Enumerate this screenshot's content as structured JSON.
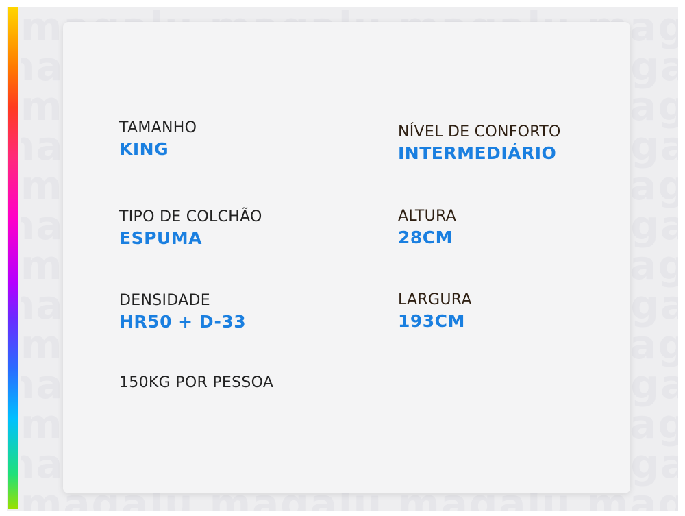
{
  "brand_watermark": "Magalu",
  "colors": {
    "label_dark": "#222222",
    "label_brown": "#2e1f12",
    "value_blue": "#1a7fe0",
    "card_background": "#f4f4f5",
    "rainbow_stripe": [
      "#ffd600",
      "#ff7a00",
      "#ff3b1f",
      "#ff2a7a",
      "#ff00c8",
      "#b400ff",
      "#2a6bff",
      "#00c0ff",
      "#1ee07a",
      "#9be000"
    ]
  },
  "specs": {
    "left": [
      {
        "label": "TAMANHO",
        "value": "KING"
      },
      {
        "label": "TIPO DE COLCHÃO",
        "value": "ESPUMA"
      },
      {
        "label": "DENSIDADE",
        "value": "HR50 + D-33"
      }
    ],
    "right": [
      {
        "label": "NÍVEL DE CONFORTO",
        "value": "INTERMEDIÁRIO"
      },
      {
        "label": "ALTURA",
        "value": "28CM"
      },
      {
        "label": "LARGURA",
        "value": "193CM"
      }
    ],
    "capacity": "150KG POR PESSOA"
  }
}
